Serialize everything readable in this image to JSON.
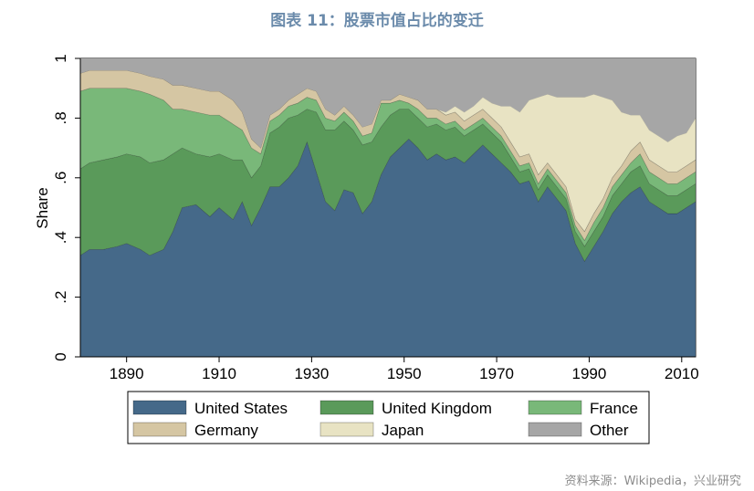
{
  "title": "图表 11：股票市值占比的变迁",
  "source_note": "资料来源：Wikipedia，兴业研究",
  "chart_data": {
    "type": "area",
    "stacked": true,
    "xlabel": "",
    "ylabel": "Share",
    "xlim": [
      1880,
      2013
    ],
    "ylim": [
      0,
      1
    ],
    "x_ticks": [
      1890,
      1910,
      1930,
      1950,
      1970,
      1990,
      2010
    ],
    "y_ticks": [
      0,
      0.2,
      0.4,
      0.6,
      0.8,
      1
    ],
    "y_tick_labels": [
      "0",
      ".2",
      ".4",
      ".6",
      ".8",
      "1"
    ],
    "grid": false,
    "legend_position": "bottom",
    "x": [
      1880,
      1882,
      1885,
      1888,
      1890,
      1893,
      1895,
      1898,
      1900,
      1902,
      1905,
      1908,
      1910,
      1913,
      1915,
      1917,
      1919,
      1921,
      1923,
      1925,
      1927,
      1929,
      1931,
      1933,
      1935,
      1937,
      1939,
      1941,
      1943,
      1945,
      1947,
      1949,
      1951,
      1953,
      1955,
      1957,
      1959,
      1961,
      1963,
      1965,
      1967,
      1969,
      1971,
      1973,
      1975,
      1977,
      1979,
      1981,
      1983,
      1985,
      1987,
      1989,
      1991,
      1993,
      1995,
      1997,
      1999,
      2001,
      2003,
      2005,
      2007,
      2009,
      2011,
      2013
    ],
    "series": [
      {
        "name": "United States",
        "color": "#456989",
        "values": [
          0.34,
          0.36,
          0.36,
          0.37,
          0.38,
          0.36,
          0.34,
          0.36,
          0.42,
          0.5,
          0.51,
          0.47,
          0.5,
          0.46,
          0.52,
          0.44,
          0.5,
          0.57,
          0.57,
          0.6,
          0.64,
          0.72,
          0.62,
          0.52,
          0.49,
          0.56,
          0.55,
          0.48,
          0.52,
          0.61,
          0.67,
          0.7,
          0.73,
          0.7,
          0.66,
          0.68,
          0.66,
          0.67,
          0.65,
          0.68,
          0.71,
          0.68,
          0.65,
          0.62,
          0.58,
          0.59,
          0.52,
          0.57,
          0.53,
          0.49,
          0.38,
          0.32,
          0.37,
          0.42,
          0.48,
          0.52,
          0.55,
          0.57,
          0.52,
          0.5,
          0.48,
          0.48,
          0.5,
          0.52
        ]
      },
      {
        "name": "United Kingdom",
        "color": "#5a9a5a",
        "values": [
          0.29,
          0.29,
          0.3,
          0.3,
          0.3,
          0.31,
          0.31,
          0.3,
          0.26,
          0.2,
          0.17,
          0.2,
          0.18,
          0.2,
          0.14,
          0.16,
          0.14,
          0.18,
          0.2,
          0.2,
          0.17,
          0.11,
          0.2,
          0.24,
          0.27,
          0.23,
          0.21,
          0.23,
          0.2,
          0.16,
          0.14,
          0.13,
          0.1,
          0.1,
          0.11,
          0.1,
          0.1,
          0.1,
          0.09,
          0.08,
          0.07,
          0.07,
          0.07,
          0.05,
          0.04,
          0.04,
          0.04,
          0.04,
          0.04,
          0.04,
          0.04,
          0.05,
          0.05,
          0.05,
          0.06,
          0.06,
          0.07,
          0.07,
          0.06,
          0.06,
          0.06,
          0.06,
          0.06,
          0.06
        ]
      },
      {
        "name": "France",
        "color": "#79b879",
        "values": [
          0.26,
          0.25,
          0.24,
          0.23,
          0.22,
          0.22,
          0.23,
          0.2,
          0.15,
          0.13,
          0.14,
          0.14,
          0.13,
          0.12,
          0.1,
          0.1,
          0.04,
          0.04,
          0.04,
          0.04,
          0.04,
          0.04,
          0.04,
          0.04,
          0.03,
          0.03,
          0.03,
          0.03,
          0.03,
          0.08,
          0.04,
          0.03,
          0.02,
          0.03,
          0.03,
          0.02,
          0.02,
          0.02,
          0.02,
          0.02,
          0.02,
          0.02,
          0.02,
          0.02,
          0.02,
          0.02,
          0.02,
          0.02,
          0.02,
          0.02,
          0.02,
          0.02,
          0.03,
          0.03,
          0.03,
          0.03,
          0.03,
          0.04,
          0.04,
          0.04,
          0.04,
          0.04,
          0.04,
          0.04
        ]
      },
      {
        "name": "Germany",
        "color": "#d5c6a3",
        "values": [
          0.06,
          0.06,
          0.06,
          0.06,
          0.06,
          0.06,
          0.06,
          0.07,
          0.08,
          0.08,
          0.08,
          0.08,
          0.08,
          0.08,
          0.06,
          0.03,
          0.02,
          0.02,
          0.02,
          0.02,
          0.03,
          0.03,
          0.03,
          0.03,
          0.02,
          0.02,
          0.02,
          0.03,
          0.03,
          0.01,
          0.01,
          0.02,
          0.02,
          0.03,
          0.03,
          0.03,
          0.03,
          0.03,
          0.03,
          0.03,
          0.03,
          0.03,
          0.03,
          0.03,
          0.03,
          0.03,
          0.03,
          0.02,
          0.02,
          0.02,
          0.02,
          0.03,
          0.03,
          0.03,
          0.03,
          0.03,
          0.04,
          0.04,
          0.04,
          0.04,
          0.04,
          0.04,
          0.04,
          0.04
        ]
      },
      {
        "name": "Japan",
        "color": "#e8e3c3",
        "values": [
          0.0,
          0.0,
          0.0,
          0.0,
          0.0,
          0.0,
          0.0,
          0.0,
          0.0,
          0.0,
          0.0,
          0.0,
          0.0,
          0.0,
          0.0,
          0.0,
          0.0,
          0.0,
          0.0,
          0.0,
          0.0,
          0.0,
          0.0,
          0.0,
          0.0,
          0.0,
          0.0,
          0.0,
          0.0,
          0.0,
          0.0,
          0.0,
          0.0,
          0.0,
          0.0,
          0.0,
          0.01,
          0.02,
          0.03,
          0.03,
          0.04,
          0.05,
          0.07,
          0.12,
          0.15,
          0.18,
          0.26,
          0.23,
          0.26,
          0.3,
          0.41,
          0.45,
          0.4,
          0.34,
          0.26,
          0.18,
          0.12,
          0.09,
          0.1,
          0.1,
          0.1,
          0.12,
          0.11,
          0.14
        ]
      },
      {
        "name": "Other",
        "color": "#a6a6a6",
        "values": [
          0.05,
          0.04,
          0.04,
          0.04,
          0.04,
          0.05,
          0.06,
          0.07,
          0.09,
          0.09,
          0.1,
          0.11,
          0.11,
          0.14,
          0.18,
          0.27,
          0.3,
          0.19,
          0.17,
          0.14,
          0.12,
          0.1,
          0.11,
          0.17,
          0.19,
          0.16,
          0.19,
          0.23,
          0.22,
          0.14,
          0.14,
          0.12,
          0.13,
          0.14,
          0.17,
          0.17,
          0.18,
          0.16,
          0.18,
          0.16,
          0.13,
          0.15,
          0.16,
          0.16,
          0.18,
          0.14,
          0.13,
          0.12,
          0.13,
          0.13,
          0.13,
          0.13,
          0.12,
          0.13,
          0.14,
          0.18,
          0.19,
          0.19,
          0.24,
          0.26,
          0.28,
          0.26,
          0.25,
          0.2
        ]
      }
    ]
  }
}
